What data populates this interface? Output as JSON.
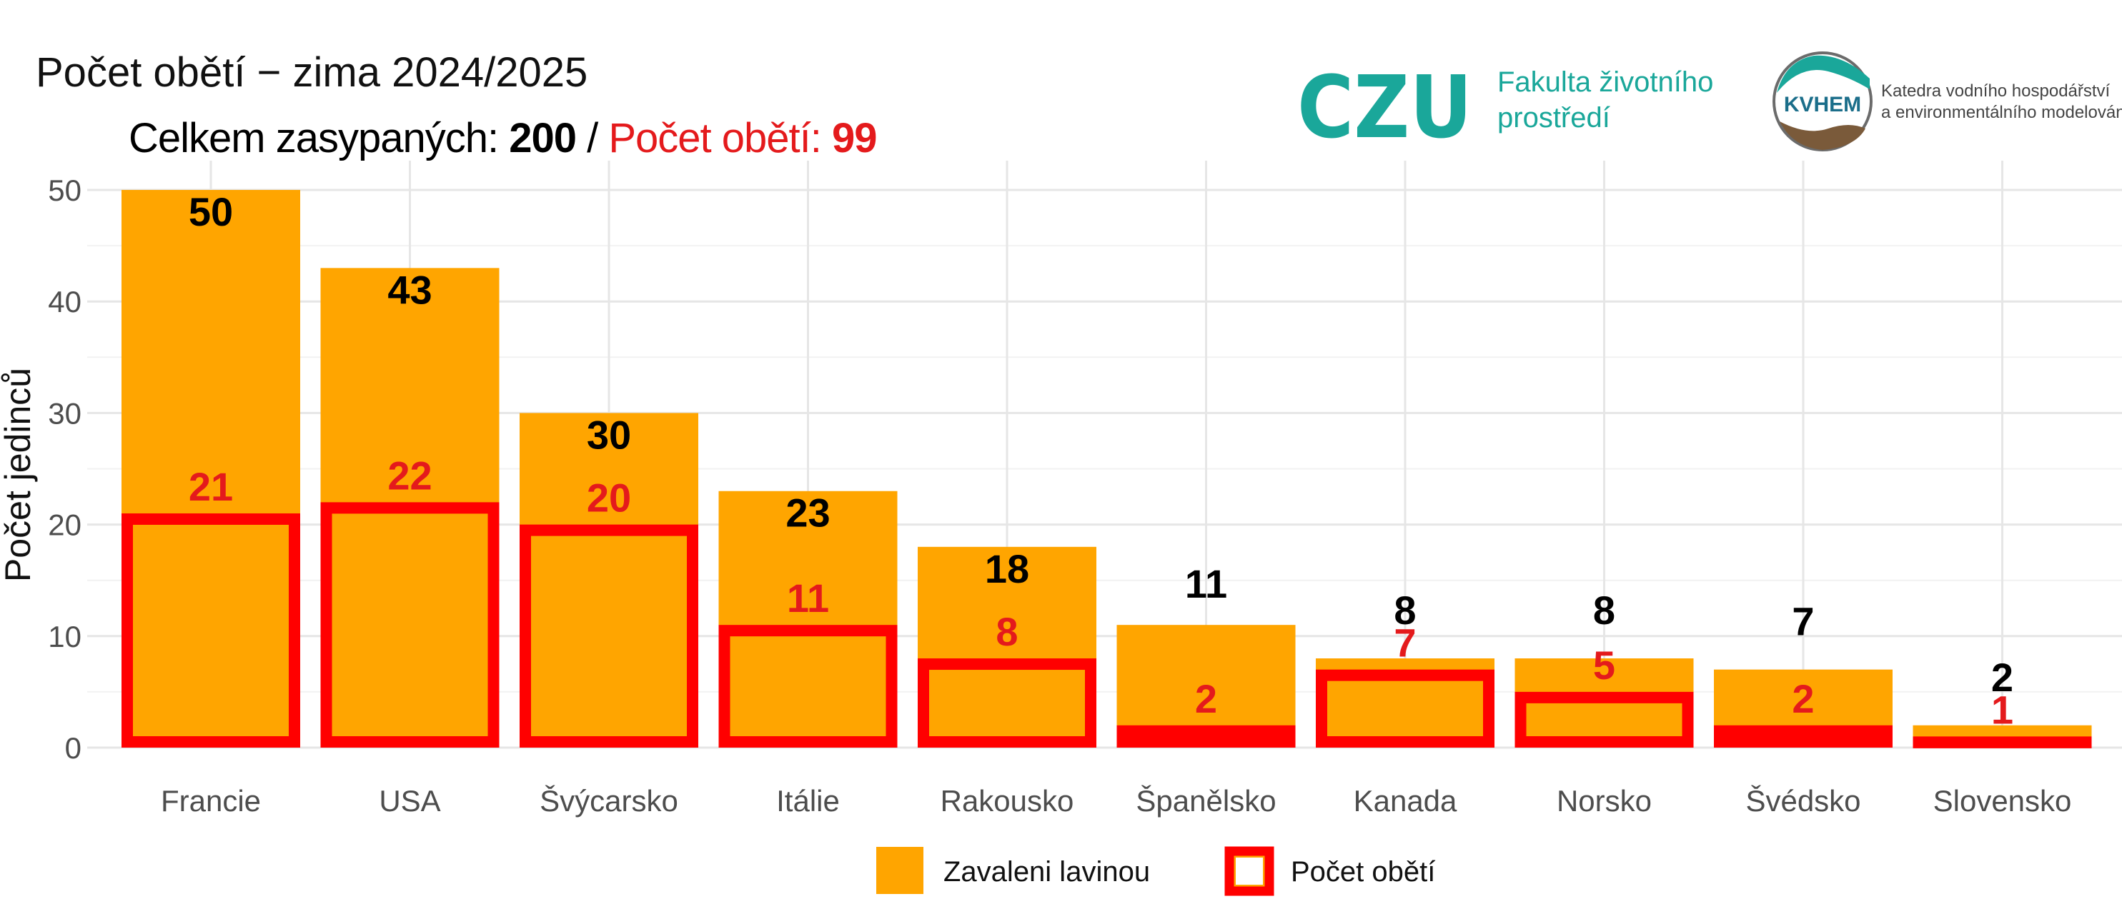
{
  "title": "Počet obětí − zima 2024/2025",
  "subtitle": {
    "total_label": "Celkem zasypaných: ",
    "total_value": "200",
    "separator": " / ",
    "deaths_label": "Počet obětí: ",
    "deaths_value": "99"
  },
  "logos": {
    "czu_mark": "CZU",
    "czu_line1": "Fakulta životního",
    "czu_line2": "prostředí",
    "kvhem_mark": "KVHEM",
    "kvhem_line1": "Katedra vodního hospodářství",
    "kvhem_line2": "a environmentálního modelování"
  },
  "colors": {
    "buried": "#FFA500",
    "deaths": "#FF0000",
    "deaths_label": "#E41A1C",
    "buried_label": "#000000",
    "grid": "#E6E6E6"
  },
  "chart_data": {
    "type": "bar",
    "categories": [
      "Francie",
      "USA",
      "Švýcarsko",
      "Itálie",
      "Rakousko",
      "Španělsko",
      "Kanada",
      "Norsko",
      "Švédsko",
      "Slovensko"
    ],
    "series": [
      {
        "name": "Zavaleni lavinou",
        "values": [
          50,
          43,
          30,
          23,
          18,
          11,
          8,
          8,
          7,
          2
        ]
      },
      {
        "name": "Počet obětí",
        "values": [
          21,
          22,
          20,
          11,
          8,
          2,
          7,
          5,
          2,
          1
        ]
      }
    ],
    "ylabel": "Počet jedinců",
    "xlabel": "",
    "ylim": [
      0,
      50
    ],
    "yticks": [
      0,
      10,
      20,
      30,
      40,
      50
    ],
    "grid": true,
    "legend_position": "bottom"
  }
}
